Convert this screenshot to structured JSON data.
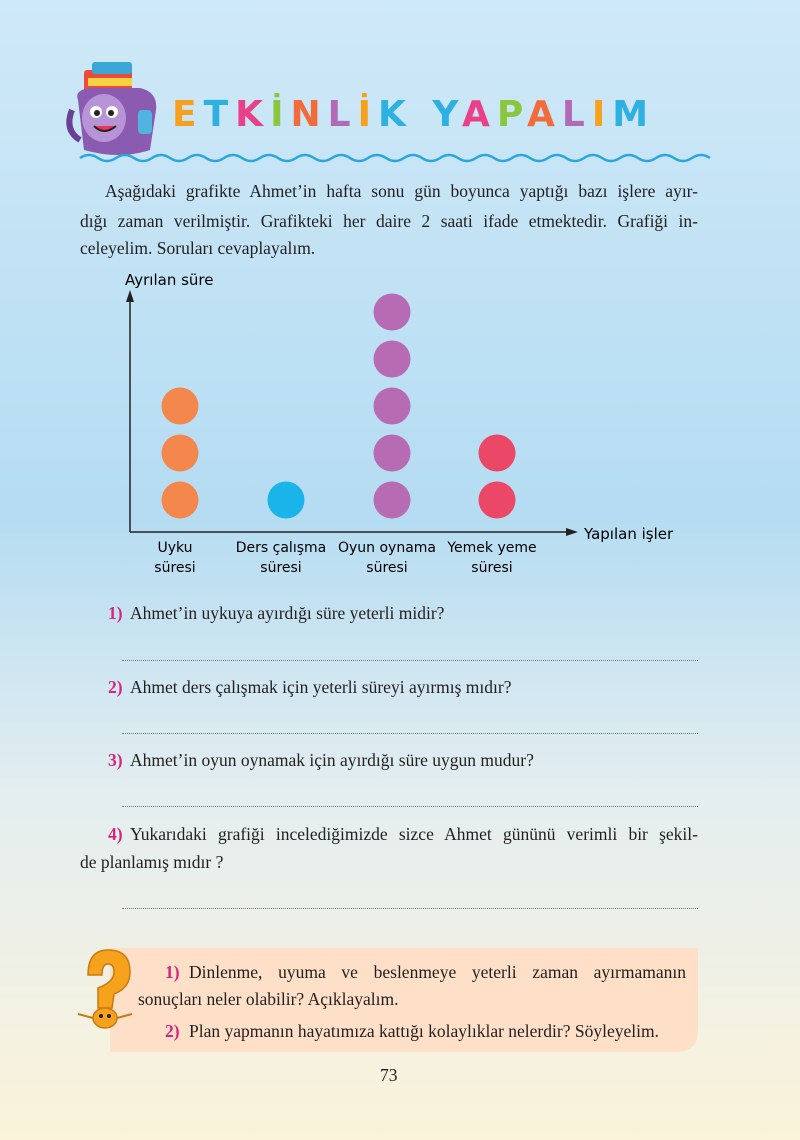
{
  "header": {
    "title": "ETKİNLİK YAPALIM"
  },
  "intro": {
    "lines": [
      "Aşağıdaki grafikte Ahmet’in hafta sonu gün boyunca yaptığı bazı işlere ayır-",
      "dığı zaman verilmiştir. Grafikteki her daire 2 saati ifade etmektedir. Grafiği in-",
      "celeyelim. Soruları cevaplayalım."
    ]
  },
  "chart_data": {
    "type": "pictograph",
    "y_label": "Ayrılan süre",
    "x_label": "Yapılan işler",
    "categories": [
      [
        "Uyku",
        "süresi"
      ],
      [
        "Ders çalışma",
        "süresi"
      ],
      [
        "Oyun oynama",
        "süresi"
      ],
      [
        "Yemek yeme",
        "süresi"
      ]
    ],
    "values": [
      3,
      1,
      5,
      2
    ],
    "colors": [
      "#f4874b",
      "#1ab4ea",
      "#b66bb2",
      "#ea4866"
    ]
  },
  "questions": [
    {
      "number": "1)",
      "lines": [
        "Ahmet’in uykuya ayırdığı süre yeterli midir?"
      ]
    },
    {
      "number": "2)",
      "lines": [
        "Ahmet ders çalışmak için yeterli süreyi ayırmış mıdır?"
      ]
    },
    {
      "number": "3)",
      "lines": [
        "Ahmet’in oyun oynamak için ayırdığı süre uygun mudur?"
      ]
    },
    {
      "number": "4)",
      "lines": [
        "Yukarıdaki grafiği incelediğimizde sizce Ahmet gününü verimli bir şekil-",
        "de planlamış mıdır ?"
      ]
    }
  ],
  "discussion": {
    "items": [
      {
        "number": "1)",
        "lines": [
          "Dinlenme, uyuma ve beslenmeye yeterli zaman ayırmamanın",
          "sonuçları neler olabilir? Açıklayalım."
        ]
      },
      {
        "number": "2)",
        "lines": [
          "Plan yapmanın hayatımıza kattığı kolaylıklar nelerdir? Söyleyelim."
        ]
      }
    ]
  },
  "page_number": 73
}
